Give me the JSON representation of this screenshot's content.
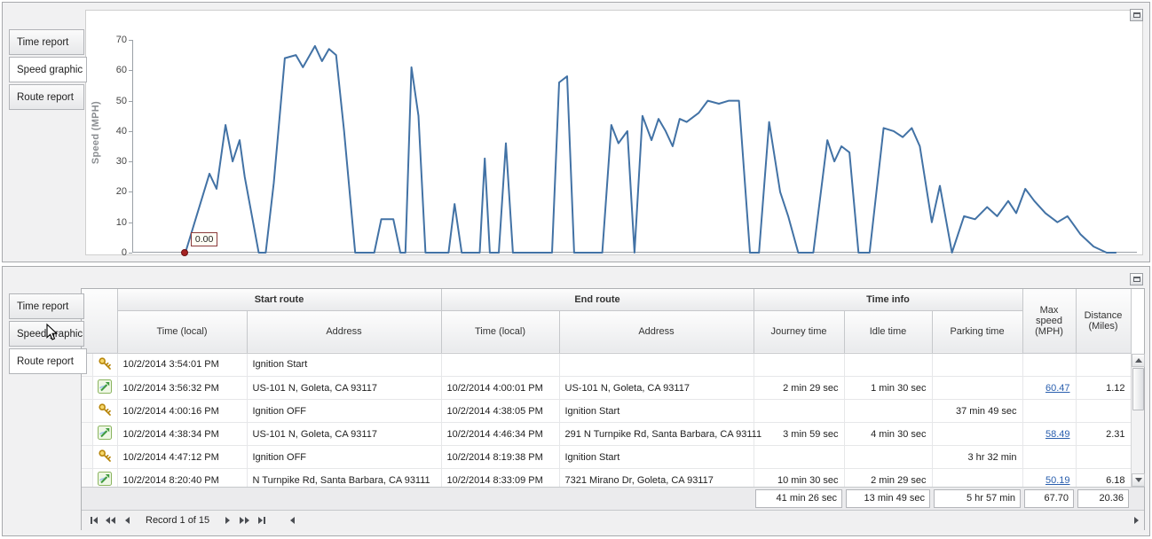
{
  "top_panel": {
    "tabs": [
      {
        "label": "Time report",
        "active": false
      },
      {
        "label": "Speed graphic",
        "active": true
      },
      {
        "label": "Route report",
        "active": false
      }
    ],
    "chart": {
      "ylabel": "Speed (MPH)",
      "yticks": [
        0,
        10,
        20,
        30,
        40,
        50,
        60,
        70
      ],
      "tooltip": "0.00"
    }
  },
  "chart_data": {
    "type": "line",
    "title": "Speed graphic",
    "xlabel": "",
    "ylabel": "Speed (MPH)",
    "ylim": [
      0,
      70
    ],
    "grid": false,
    "legend": "none",
    "line_color": "#4272a5",
    "annotations": [
      {
        "text": "0.00",
        "x": 0.052,
        "y": 0
      }
    ],
    "series": [
      {
        "name": "Speed (MPH)",
        "x": [
          0.052,
          0.076,
          0.083,
          0.092,
          0.099,
          0.106,
          0.111,
          0.125,
          0.132,
          0.14,
          0.151,
          0.162,
          0.169,
          0.181,
          0.188,
          0.195,
          0.202,
          0.21,
          0.221,
          0.24,
          0.247,
          0.259,
          0.266,
          0.271,
          0.277,
          0.284,
          0.291,
          0.314,
          0.32,
          0.327,
          0.345,
          0.35,
          0.355,
          0.364,
          0.371,
          0.378,
          0.417,
          0.424,
          0.432,
          0.439,
          0.467,
          0.476,
          0.483,
          0.492,
          0.499,
          0.507,
          0.516,
          0.523,
          0.53,
          0.537,
          0.544,
          0.551,
          0.563,
          0.572,
          0.583,
          0.593,
          0.603,
          0.614,
          0.623,
          0.633,
          0.644,
          0.652,
          0.662,
          0.677,
          0.691,
          0.698,
          0.705,
          0.713,
          0.722,
          0.733,
          0.747,
          0.757,
          0.766,
          0.775,
          0.783,
          0.795,
          0.803,
          0.815,
          0.827,
          0.838,
          0.85,
          0.86,
          0.871,
          0.879,
          0.888,
          0.897,
          0.908,
          0.92,
          0.93,
          0.943,
          0.956,
          0.969,
          0.978
        ],
        "y": [
          0,
          26,
          21,
          42,
          30,
          37,
          25,
          0,
          0,
          23,
          64,
          65,
          61,
          68,
          63,
          67,
          65,
          40,
          0,
          0,
          11,
          11,
          0,
          0,
          61,
          45,
          0,
          0,
          16,
          0,
          0,
          31,
          0,
          0,
          36,
          0,
          0,
          56,
          58,
          0,
          0,
          42,
          36,
          40,
          0,
          45,
          37,
          44,
          40,
          35,
          44,
          43,
          46,
          50,
          49,
          50,
          50,
          0,
          0,
          43,
          20,
          12,
          0,
          0,
          37,
          30,
          35,
          33,
          0,
          0,
          41,
          40,
          38,
          41,
          35,
          10,
          22,
          0,
          12,
          11,
          15,
          12,
          17,
          13,
          21,
          17,
          13,
          10,
          12,
          6,
          2,
          0,
          0
        ]
      }
    ]
  },
  "bottom_panel": {
    "tabs": [
      {
        "label": "Time report",
        "active": false
      },
      {
        "label": "Speed graphic",
        "active": false
      },
      {
        "label": "Route report",
        "active": true
      }
    ],
    "table": {
      "group_headers": [
        "Start route",
        "End route",
        "Time info"
      ],
      "columns": [
        "Time (local)",
        "Address",
        "Time (local)",
        "Address",
        "Journey time",
        "Idle time",
        "Parking time",
        "Max speed (MPH)",
        "Distance (Miles)"
      ],
      "rows": [
        {
          "icon": "key-icon",
          "start_time": "10/2/2014 3:54:01 PM",
          "start_address": "Ignition Start",
          "end_time": "",
          "end_address": "",
          "journey_time": "",
          "idle_time": "",
          "parking_time": "",
          "max_speed": "",
          "max_speed_link": false,
          "distance": ""
        },
        {
          "icon": "route-icon",
          "start_time": "10/2/2014 3:56:32 PM",
          "start_address": "US-101 N, Goleta, CA 93117",
          "end_time": "10/2/2014 4:00:01 PM",
          "end_address": "US-101 N, Goleta, CA 93117",
          "journey_time": "2 min 29 sec",
          "idle_time": "1 min 30 sec",
          "parking_time": "",
          "max_speed": "60.47",
          "max_speed_link": true,
          "distance": "1.12"
        },
        {
          "icon": "key-icon",
          "start_time": "10/2/2014 4:00:16 PM",
          "start_address": "Ignition OFF",
          "end_time": "10/2/2014 4:38:05 PM",
          "end_address": "Ignition Start",
          "journey_time": "",
          "idle_time": "",
          "parking_time": "37 min 49 sec",
          "max_speed": "",
          "max_speed_link": false,
          "distance": ""
        },
        {
          "icon": "route-icon",
          "start_time": "10/2/2014 4:38:34 PM",
          "start_address": "US-101 N, Goleta, CA 93117",
          "end_time": "10/2/2014 4:46:34 PM",
          "end_address": "291 N Turnpike Rd, Santa Barbara, CA 93111",
          "journey_time": "3 min 59 sec",
          "idle_time": "4 min 30 sec",
          "parking_time": "",
          "max_speed": "58.49",
          "max_speed_link": true,
          "distance": "2.31"
        },
        {
          "icon": "key-icon",
          "start_time": "10/2/2014 4:47:12 PM",
          "start_address": "Ignition OFF",
          "end_time": "10/2/2014 8:19:38 PM",
          "end_address": "Ignition Start",
          "journey_time": "",
          "idle_time": "",
          "parking_time": "3 hr 32 min",
          "max_speed": "",
          "max_speed_link": false,
          "distance": ""
        },
        {
          "icon": "route-icon",
          "start_time": "10/2/2014 8:20:40 PM",
          "start_address": "N Turnpike Rd, Santa Barbara, CA 93111",
          "end_time": "10/2/2014 8:33:09 PM",
          "end_address": "7321 Mirano Dr, Goleta, CA 93117",
          "journey_time": "10 min 30 sec",
          "idle_time": "2 min 29 sec",
          "parking_time": "",
          "max_speed": "50.19",
          "max_speed_link": true,
          "distance": "6.18"
        }
      ],
      "summary": {
        "journey_time": "41 min 26 sec",
        "idle_time": "13 min 49 sec",
        "parking_time": "5 hr 57 min",
        "max_speed": "67.70",
        "distance": "20.36"
      },
      "pager": {
        "record_label": "Record 1 of 15"
      }
    }
  }
}
